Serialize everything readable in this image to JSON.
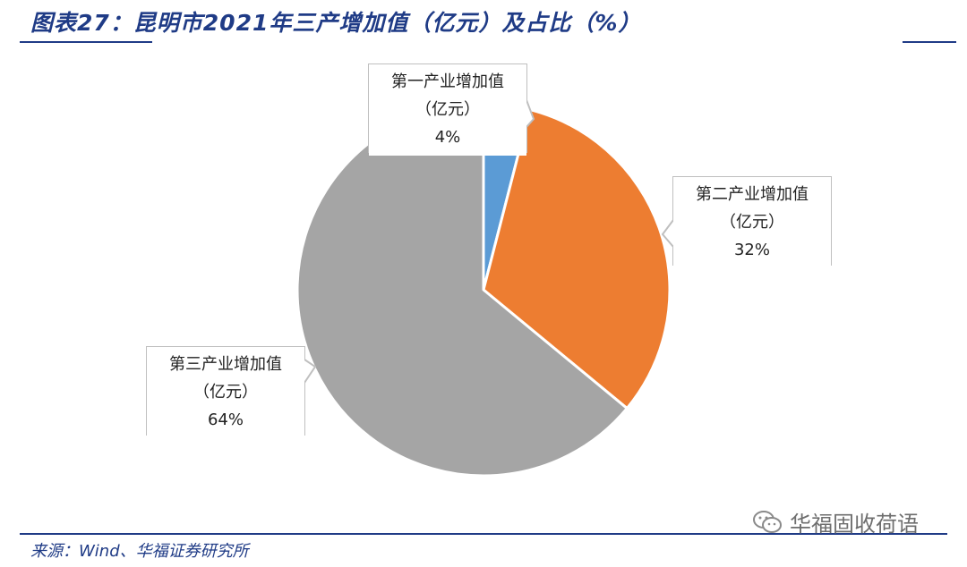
{
  "title": "图表27：昆明市2021年三产增加值（亿元）及占比（%）",
  "source": "来源：Wind、华福证券研究所",
  "watermark": "华福固收荷语",
  "chart_data": {
    "type": "pie",
    "title": "图表27：昆明市2021年三产增加值（亿元）及占比（%）",
    "slices": [
      {
        "name": "第一产业增加值",
        "unit": "（亿元）",
        "value": 4,
        "label": "4%",
        "color": "#5b9bd5"
      },
      {
        "name": "第二产业增加值",
        "unit": "（亿元）",
        "value": 32,
        "label": "32%",
        "color": "#ed7d31"
      },
      {
        "name": "第三产业增加值",
        "unit": "（亿元）",
        "value": 64,
        "label": "64%",
        "color": "#a5a5a5"
      }
    ],
    "start_angle": "12 o'clock, clockwise",
    "legend": "none (callout data labels)"
  }
}
